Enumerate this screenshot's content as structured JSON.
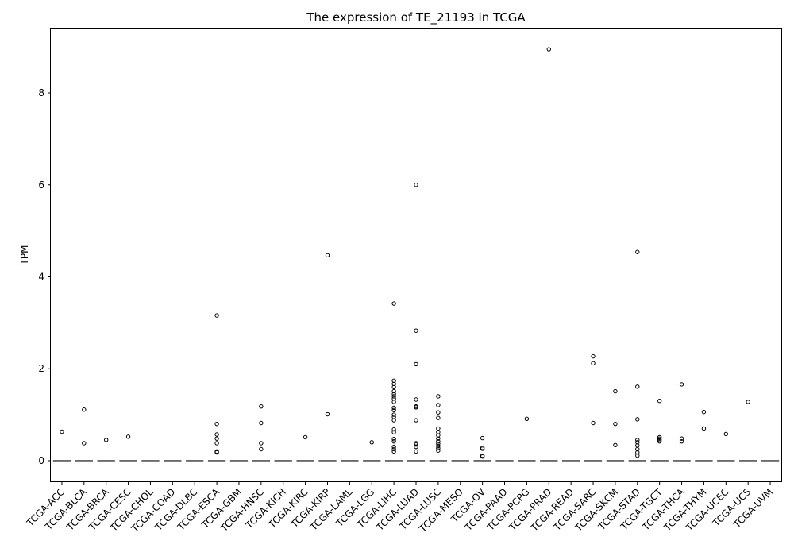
{
  "chart_data": {
    "type": "box",
    "title": "The expression of TE_21193 in TCGA",
    "xlabel": "",
    "ylabel": "TPM",
    "ylim": [
      -0.45,
      9.4
    ],
    "yticks": [
      0,
      2,
      4,
      6,
      8
    ],
    "grid": false,
    "legend": "none",
    "box_line_color": "#555555",
    "categories": [
      "TCGA-ACC",
      "TCGA-BLCA",
      "TCGA-BRCA",
      "TCGA-CESC",
      "TCGA-CHOL",
      "TCGA-COAD",
      "TCGA-DLBC",
      "TCGA-ESCA",
      "TCGA-GBM",
      "TCGA-HNSC",
      "TCGA-KICH",
      "TCGA-KIRC",
      "TCGA-KIRP",
      "TCGA-LAML",
      "TCGA-LGG",
      "TCGA-LIHC",
      "TCGA-LUAD",
      "TCGA-LUSC",
      "TCGA-MESO",
      "TCGA-OV",
      "TCGA-PAAD",
      "TCGA-PCPG",
      "TCGA-PRAD",
      "TCGA-READ",
      "TCGA-SARC",
      "TCGA-SKCM",
      "TCGA-STAD",
      "TCGA-TGCT",
      "TCGA-THCA",
      "TCGA-THYM",
      "TCGA-UCEC",
      "TCGA-UCS",
      "TCGA-UVM"
    ],
    "medians": [
      0,
      0,
      0,
      0,
      0,
      0,
      0,
      0,
      0,
      0,
      0,
      0,
      0,
      0,
      0,
      0,
      0,
      0,
      0,
      0,
      0,
      0,
      0,
      0,
      0,
      0,
      0,
      0,
      0,
      0,
      0,
      0,
      0
    ],
    "outliers": [
      [
        0.63
      ],
      [
        1.11,
        0.38
      ],
      [
        0.45
      ],
      [
        0.52
      ],
      [],
      [],
      [],
      [
        3.16,
        0.8,
        0.57,
        0.48,
        0.38,
        0.2,
        0.18
      ],
      [],
      [
        1.18,
        0.82,
        0.38,
        0.25
      ],
      [],
      [
        0.51
      ],
      [
        4.47,
        1.01
      ],
      [],
      [
        0.4
      ],
      [
        3.42,
        1.74,
        1.67,
        1.6,
        1.51,
        1.45,
        1.4,
        1.35,
        1.28,
        1.15,
        1.1,
        1.0,
        0.95,
        0.88,
        0.68,
        0.62,
        0.47,
        0.42,
        0.3,
        0.25,
        0.2
      ],
      [
        6.0,
        2.83,
        2.1,
        1.33,
        1.18,
        1.16,
        0.88,
        0.38,
        0.35,
        0.3,
        0.2
      ],
      [
        1.4,
        1.21,
        1.05,
        0.93,
        0.7,
        0.62,
        0.55,
        0.48,
        0.42,
        0.37,
        0.32,
        0.27,
        0.22
      ],
      [],
      [
        0.49,
        0.28,
        0.26,
        0.11,
        0.09
      ],
      [],
      [
        0.91
      ],
      [
        8.95
      ],
      [],
      [
        2.27,
        2.12,
        0.82
      ],
      [
        1.51,
        0.8,
        0.34
      ],
      [
        4.54,
        1.61,
        0.9,
        0.45,
        0.4,
        0.33,
        0.25,
        0.18,
        0.11
      ],
      [
        1.3,
        0.51,
        0.48,
        0.45,
        0.42
      ],
      [
        1.66,
        0.48,
        0.42
      ],
      [
        1.06,
        0.7
      ],
      [
        0.58
      ],
      [
        1.28
      ],
      []
    ]
  }
}
